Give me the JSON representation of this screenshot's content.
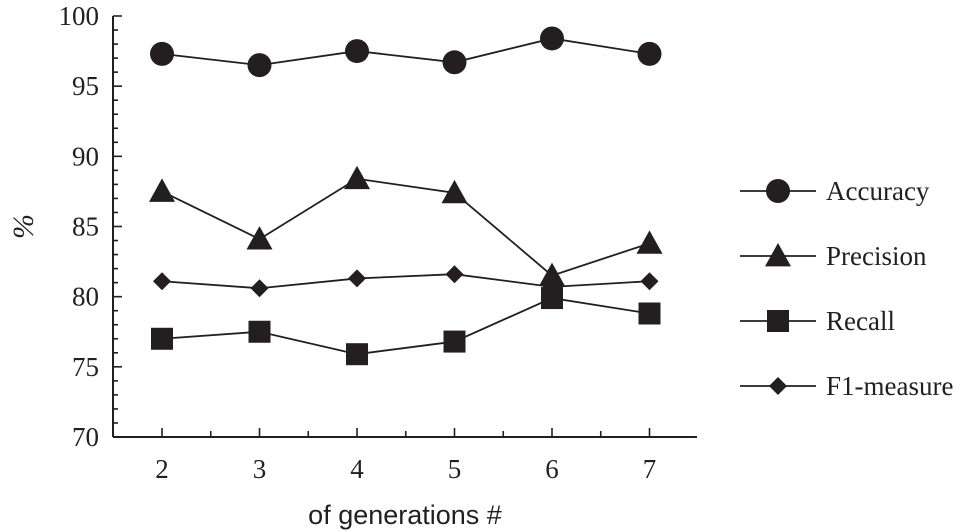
{
  "chart_data": {
    "type": "line",
    "title": "",
    "xlabel": "of generations #",
    "ylabel": "%",
    "x": [
      2,
      3,
      4,
      5,
      6,
      7
    ],
    "xticks": [
      "2",
      "3",
      "4",
      "5",
      "6",
      "7"
    ],
    "yticks": [
      "70",
      "75",
      "80",
      "85",
      "90",
      "95",
      "100"
    ],
    "ylim": [
      70,
      100
    ],
    "grid": false,
    "legend_position": "right",
    "series": [
      {
        "name": "Accuracy",
        "marker": "circle",
        "values": [
          97.3,
          96.5,
          97.5,
          96.7,
          98.4,
          97.3
        ]
      },
      {
        "name": "Precision",
        "marker": "triangle",
        "values": [
          87.5,
          84.1,
          88.4,
          87.4,
          81.5,
          83.8
        ]
      },
      {
        "name": "Recall",
        "marker": "square",
        "values": [
          77.0,
          77.5,
          75.9,
          76.8,
          79.9,
          78.8
        ]
      },
      {
        "name": "F1-measure",
        "marker": "diamond",
        "values": [
          81.1,
          80.6,
          81.3,
          81.6,
          80.7,
          81.1
        ]
      }
    ],
    "colors": {
      "ink": "#231f20",
      "background": "#ffffff"
    }
  }
}
